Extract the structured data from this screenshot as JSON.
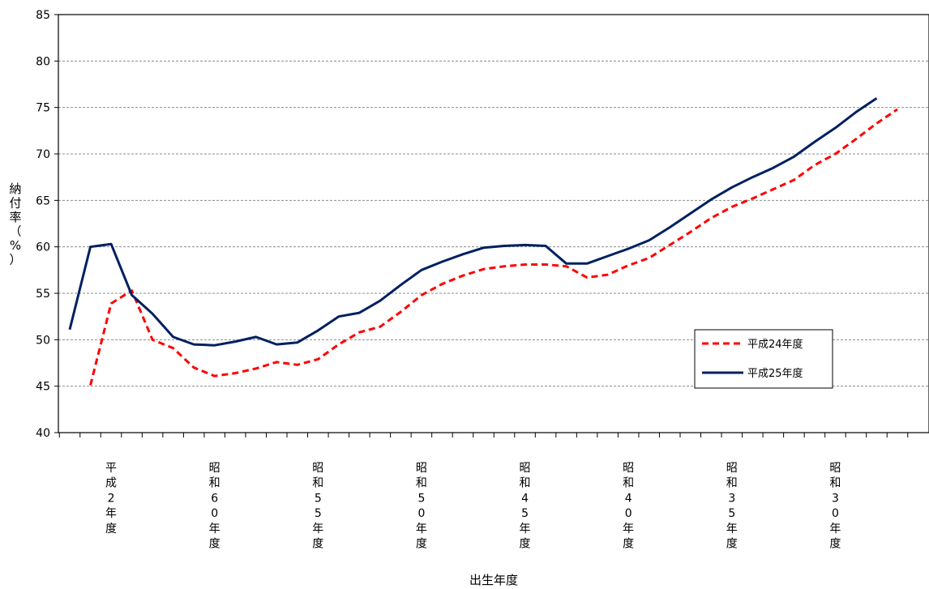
{
  "chart_data": {
    "type": "line",
    "xlabel": "出生年度",
    "ylabel": "納付率（%）",
    "ylim": [
      40,
      85
    ],
    "yticks": [
      40,
      45,
      50,
      55,
      60,
      65,
      70,
      75,
      80,
      85
    ],
    "grid": "horizontal dashed",
    "legend_position": "right",
    "category_labels": [
      {
        "index": 2,
        "text": "平成2年度"
      },
      {
        "index": 7,
        "text": "昭和60年度"
      },
      {
        "index": 12,
        "text": "昭和55年度"
      },
      {
        "index": 17,
        "text": "昭和50年度"
      },
      {
        "index": 22,
        "text": "昭和45年度"
      },
      {
        "index": 27,
        "text": "昭和40年度"
      },
      {
        "index": 32,
        "text": "昭和35年度"
      },
      {
        "index": 37,
        "text": "昭和30年度"
      }
    ],
    "series": [
      {
        "name": "平成24年度",
        "color": "#ff0000",
        "style": "dashed",
        "values": [
          null,
          45.1,
          53.9,
          55.3,
          50.0,
          49.1,
          47.0,
          46.1,
          46.4,
          46.9,
          47.6,
          47.3,
          47.9,
          49.5,
          50.8,
          51.4,
          53.0,
          54.8,
          56.0,
          56.9,
          57.6,
          57.9,
          58.1,
          58.1,
          57.9,
          56.7,
          57.0,
          58.0,
          58.8,
          60.2,
          61.6,
          63.1,
          64.3,
          65.2,
          66.2,
          67.2,
          68.8,
          70.0,
          71.6,
          73.3,
          74.8
        ]
      },
      {
        "name": "平成25年度",
        "color": "#002060",
        "style": "solid",
        "values": [
          51.1,
          60.0,
          60.3,
          54.8,
          52.8,
          50.3,
          49.5,
          49.4,
          49.8,
          50.3,
          49.5,
          49.7,
          51.0,
          52.5,
          52.9,
          54.2,
          55.9,
          57.5,
          58.4,
          59.2,
          59.9,
          60.1,
          60.2,
          60.1,
          58.2,
          58.2,
          59.0,
          59.8,
          60.7,
          62.1,
          63.6,
          65.1,
          66.4,
          67.5,
          68.5,
          69.7,
          71.3,
          72.8,
          74.5,
          76.0,
          null
        ]
      }
    ]
  }
}
